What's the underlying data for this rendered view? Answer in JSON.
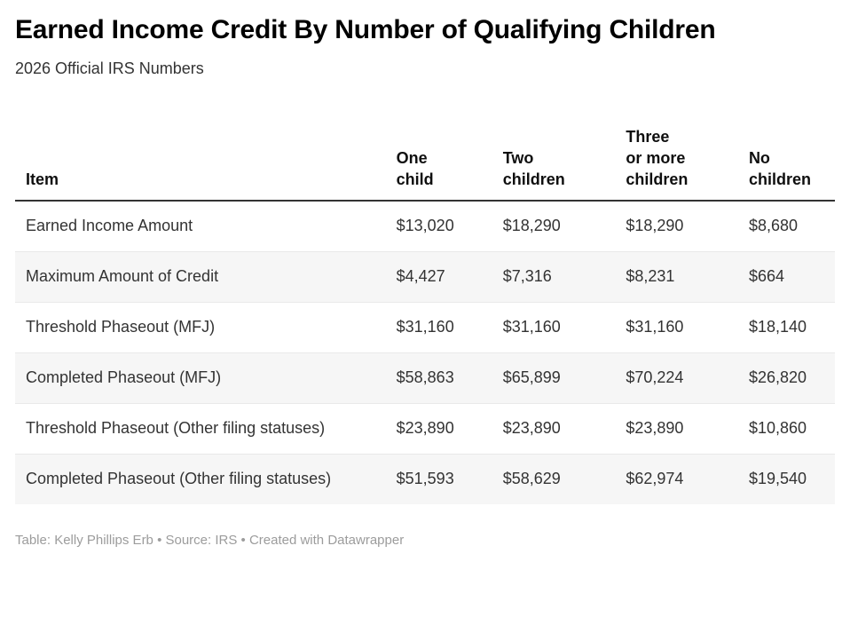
{
  "chart_data": {
    "type": "table",
    "title": "Earned Income Credit By Number of Qualifying Children",
    "subtitle": "2026 Official IRS Numbers",
    "columns": [
      "Item",
      "One\nchild",
      "Two\nchildren",
      "Three\nor more\nchildren",
      "No\nchildren"
    ],
    "rows": [
      {
        "item": "Earned Income Amount",
        "values": [
          "$13,020",
          "$18,290",
          "$18,290",
          "$8,680"
        ]
      },
      {
        "item": "Maximum Amount of Credit",
        "values": [
          "$4,427",
          "$7,316",
          "$8,231",
          "$664"
        ]
      },
      {
        "item": "Threshold Phaseout (MFJ)",
        "values": [
          "$31,160",
          "$31,160",
          "$31,160",
          "$18,140"
        ]
      },
      {
        "item": "Completed Phaseout (MFJ)",
        "values": [
          "$58,863",
          "$65,899",
          "$70,224",
          "$26,820"
        ]
      },
      {
        "item": "Threshold Phaseout (Other filing statuses)",
        "values": [
          "$23,890",
          "$23,890",
          "$23,890",
          "$10,860"
        ]
      },
      {
        "item": "Completed Phaseout (Other filing statuses)",
        "values": [
          "$51,593",
          "$58,629",
          "$62,974",
          "$19,540"
        ]
      }
    ],
    "footer": "Table: Kelly Phillips Erb • Source: IRS • Created with Datawrapper",
    "layout": {
      "zebra_striping": true,
      "header_rule": true,
      "value_alignment": "left",
      "header_vertical_alignment": "bottom"
    }
  },
  "colors": {
    "title_text": "#000000",
    "body_text": "#333333",
    "header_rule": "#333333",
    "stripe_background": "#f6f6f6",
    "row_divider": "#e9e9e9",
    "footer_text": "#9c9c9c",
    "page_background": "#ffffff"
  }
}
